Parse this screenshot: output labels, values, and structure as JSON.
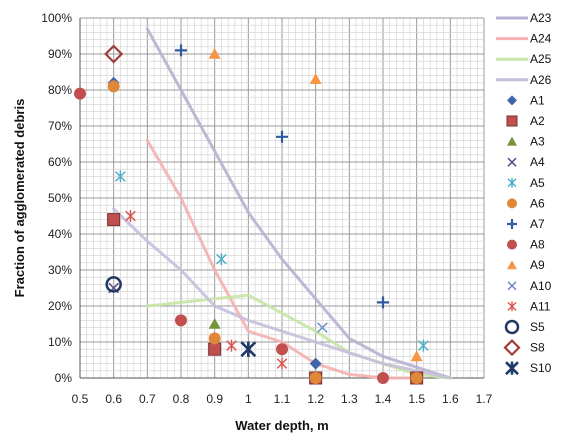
{
  "chart_data": {
    "type": "scatter",
    "title": "",
    "xlabel": "Water depth, m",
    "ylabel": "Fraction of agglomerated debris",
    "xlim": [
      0.5,
      1.7
    ],
    "ylim": [
      0,
      1.0
    ],
    "x_ticks": [
      "0.5",
      "0.6",
      "0.7",
      "0.8",
      "0.9",
      "1",
      "1.1",
      "1.2",
      "1.3",
      "1.4",
      "1.5",
      "1.6",
      "1.7"
    ],
    "y_ticks": [
      "0%",
      "10%",
      "20%",
      "30%",
      "40%",
      "50%",
      "60%",
      "70%",
      "80%",
      "90%",
      "100%"
    ],
    "grid": true,
    "legend_position": "right",
    "series": [
      {
        "name": "A23",
        "kind": "line",
        "color": "#b8b0d0",
        "points": [
          [
            0.7,
            0.97
          ],
          [
            0.8,
            0.8
          ],
          [
            0.9,
            0.63
          ],
          [
            1.0,
            0.46
          ],
          [
            1.1,
            0.33
          ],
          [
            1.2,
            0.22
          ],
          [
            1.3,
            0.11
          ],
          [
            1.4,
            0.06
          ],
          [
            1.5,
            0.03
          ],
          [
            1.6,
            0.0
          ]
        ]
      },
      {
        "name": "A24",
        "kind": "line",
        "color": "#f4b0b0",
        "points": [
          [
            0.7,
            0.66
          ],
          [
            0.8,
            0.5
          ],
          [
            0.9,
            0.3
          ],
          [
            1.0,
            0.13
          ],
          [
            1.1,
            0.1
          ],
          [
            1.2,
            0.04
          ],
          [
            1.3,
            0.01
          ],
          [
            1.4,
            0.0
          ],
          [
            1.5,
            0.0
          ]
        ]
      },
      {
        "name": "A25",
        "kind": "line",
        "color": "#c6e6a6",
        "points": [
          [
            0.7,
            0.2
          ],
          [
            0.8,
            0.21
          ],
          [
            0.9,
            0.22
          ],
          [
            1.0,
            0.23
          ],
          [
            1.1,
            0.18
          ],
          [
            1.2,
            0.13
          ],
          [
            1.3,
            0.07
          ],
          [
            1.4,
            0.04
          ],
          [
            1.5,
            0.01
          ],
          [
            1.6,
            0.0
          ]
        ]
      },
      {
        "name": "A26",
        "kind": "line",
        "color": "#c8bedb",
        "points": [
          [
            0.6,
            0.47
          ],
          [
            0.7,
            0.38
          ],
          [
            0.8,
            0.3
          ],
          [
            0.9,
            0.2
          ],
          [
            1.0,
            0.16
          ],
          [
            1.1,
            0.13
          ],
          [
            1.2,
            0.1
          ],
          [
            1.3,
            0.07
          ],
          [
            1.4,
            0.04
          ],
          [
            1.5,
            0.02
          ],
          [
            1.6,
            0.0
          ]
        ]
      },
      {
        "name": "A1",
        "kind": "marker",
        "marker": "diamond",
        "color": "#3f64a8",
        "points": [
          [
            0.6,
            0.82
          ],
          [
            0.6,
            0.44
          ],
          [
            0.9,
            0.08
          ],
          [
            1.2,
            0.04
          ]
        ]
      },
      {
        "name": "A2",
        "kind": "marker",
        "marker": "square",
        "color": "#c0504d",
        "points": [
          [
            0.6,
            0.44
          ],
          [
            0.9,
            0.08
          ],
          [
            1.2,
            0.0
          ],
          [
            1.5,
            0.0
          ]
        ]
      },
      {
        "name": "A3",
        "kind": "marker",
        "marker": "triangle",
        "color": "#77933c",
        "points": [
          [
            0.9,
            0.15
          ]
        ]
      },
      {
        "name": "A4",
        "kind": "marker",
        "marker": "x",
        "color": "#5f4b8b",
        "points": [
          [
            0.6,
            0.25
          ]
        ]
      },
      {
        "name": "A5",
        "kind": "marker",
        "marker": "star",
        "color": "#4bacc6",
        "points": [
          [
            0.62,
            0.56
          ],
          [
            0.92,
            0.33
          ],
          [
            1.52,
            0.09
          ]
        ]
      },
      {
        "name": "A6",
        "kind": "marker",
        "marker": "circle",
        "color": "#e0883a",
        "points": [
          [
            0.6,
            0.81
          ],
          [
            0.9,
            0.11
          ],
          [
            1.2,
            0.0
          ],
          [
            1.5,
            0.0
          ]
        ]
      },
      {
        "name": "A7",
        "kind": "marker",
        "marker": "plus",
        "color": "#2f5a9e",
        "points": [
          [
            0.8,
            0.91
          ],
          [
            1.1,
            0.67
          ],
          [
            1.4,
            0.21
          ]
        ]
      },
      {
        "name": "A8",
        "kind": "marker",
        "marker": "circle",
        "color": "#c0504d",
        "points": [
          [
            0.5,
            0.79
          ],
          [
            0.8,
            0.16
          ],
          [
            1.1,
            0.08
          ],
          [
            1.4,
            0.0
          ]
        ]
      },
      {
        "name": "A9",
        "kind": "marker",
        "marker": "triangle",
        "color": "#f79646",
        "points": [
          [
            0.9,
            0.9
          ],
          [
            1.2,
            0.83
          ],
          [
            1.5,
            0.06
          ]
        ]
      },
      {
        "name": "A10",
        "kind": "marker",
        "marker": "x",
        "color": "#6b8fc7",
        "points": [
          [
            1.22,
            0.14
          ]
        ]
      },
      {
        "name": "A11",
        "kind": "marker",
        "marker": "star",
        "color": "#d9534f",
        "points": [
          [
            0.65,
            0.45
          ],
          [
            0.95,
            0.09
          ],
          [
            1.1,
            0.04
          ]
        ]
      },
      {
        "name": "S5",
        "kind": "marker",
        "marker": "ring",
        "color": "#1f3864",
        "points": [
          [
            0.6,
            0.26
          ]
        ]
      },
      {
        "name": "S8",
        "kind": "marker",
        "marker": "diamond-open",
        "color": "#a03c3c",
        "points": [
          [
            0.6,
            0.9
          ]
        ]
      },
      {
        "name": "S10",
        "kind": "marker",
        "marker": "star-bold",
        "color": "#1f3864",
        "points": [
          [
            1.0,
            0.08
          ]
        ]
      }
    ]
  }
}
